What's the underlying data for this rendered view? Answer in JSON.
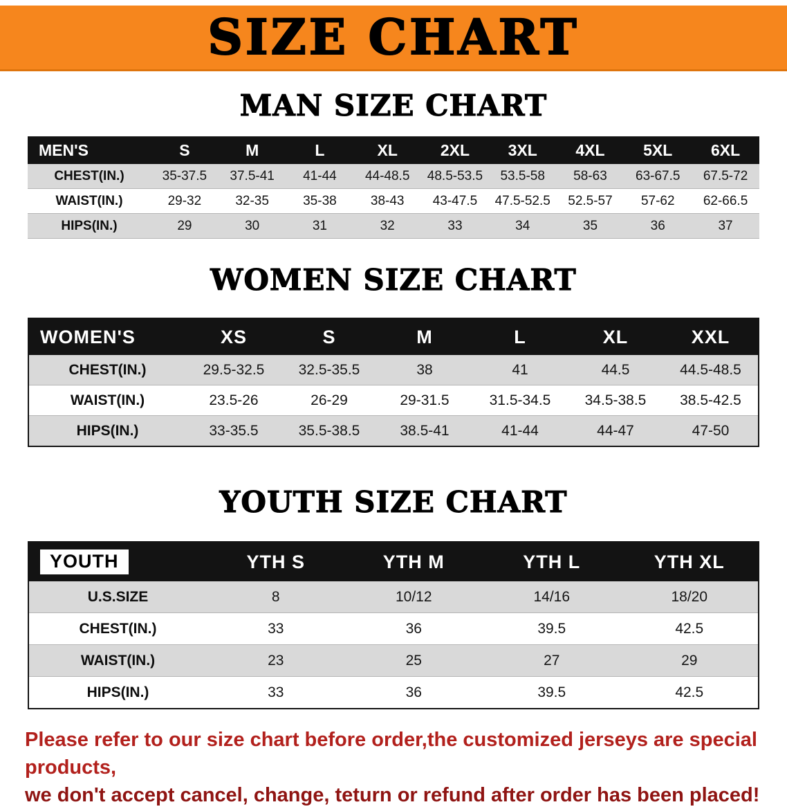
{
  "banner": {
    "title": "SIZE CHART"
  },
  "colors": {
    "banner_bg": "#f6861d",
    "header_bg": "#131313",
    "stripe": "#d9d9d9",
    "disclaimer_red": "#b2201c",
    "disclaimer_dark_red": "#8f1412"
  },
  "sections": [
    {
      "heading": "MAN SIZE CHART",
      "corner_chip": false,
      "table": {
        "header": [
          "MEN'S",
          "S",
          "M",
          "L",
          "XL",
          "2XL",
          "3XL",
          "4XL",
          "5XL",
          "6XL"
        ],
        "rows": [
          [
            "CHEST(IN.)",
            "35-37.5",
            "37.5-41",
            "41-44",
            "44-48.5",
            "48.5-53.5",
            "53.5-58",
            "58-63",
            "63-67.5",
            "67.5-72"
          ],
          [
            "WAIST(IN.)",
            "29-32",
            "32-35",
            "35-38",
            "38-43",
            "43-47.5",
            "47.5-52.5",
            "52.5-57",
            "57-62",
            "62-66.5"
          ],
          [
            "HIPS(IN.)",
            "29",
            "30",
            "31",
            "32",
            "33",
            "34",
            "35",
            "36",
            "37"
          ]
        ]
      }
    },
    {
      "heading": "WOMEN SIZE CHART",
      "corner_chip": false,
      "table": {
        "header": [
          "WOMEN'S",
          "XS",
          "S",
          "M",
          "L",
          "XL",
          "XXL"
        ],
        "rows": [
          [
            "CHEST(IN.)",
            "29.5-32.5",
            "32.5-35.5",
            "38",
            "41",
            "44.5",
            "44.5-48.5"
          ],
          [
            "WAIST(IN.)",
            "23.5-26",
            "26-29",
            "29-31.5",
            "31.5-34.5",
            "34.5-38.5",
            "38.5-42.5"
          ],
          [
            "HIPS(IN.)",
            "33-35.5",
            "35.5-38.5",
            "38.5-41",
            "41-44",
            "44-47",
            "47-50"
          ]
        ]
      }
    },
    {
      "heading": "YOUTH SIZE CHART",
      "corner_chip": true,
      "table": {
        "header": [
          "YOUTH",
          "YTH S",
          "YTH M",
          "YTH L",
          "YTH XL"
        ],
        "rows": [
          [
            "U.S.SIZE",
            "8",
            "10/12",
            "14/16",
            "18/20"
          ],
          [
            "CHEST(IN.)",
            "33",
            "36",
            "39.5",
            "42.5"
          ],
          [
            "WAIST(IN.)",
            "23",
            "25",
            "27",
            "29"
          ],
          [
            "HIPS(IN.)",
            "33",
            "36",
            "39.5",
            "42.5"
          ]
        ]
      }
    }
  ],
  "disclaimer": {
    "lines": [
      "Please refer to our size chart before order,the customized jerseys are special products,",
      "we don't accept cancel, change, teturn or refund after order has been placed!"
    ]
  }
}
